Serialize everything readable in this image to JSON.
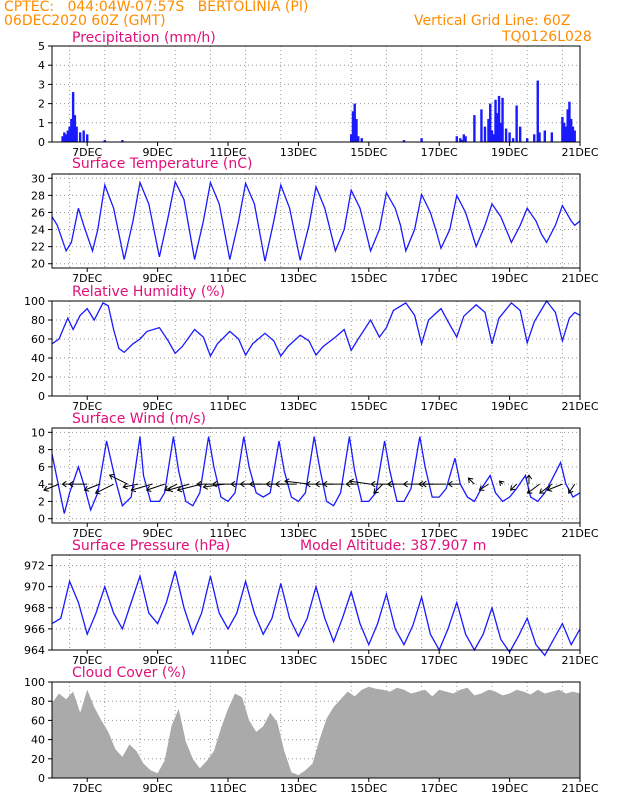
{
  "header": {
    "line1": "CPTEC:   044:04W-07:57S   BERTOLINIA (PI)",
    "line2": "06DEC2020 60Z (GMT)",
    "grid_note": "Vertical Grid Line: 60Z",
    "code": "TQ0126L028"
  },
  "colors": {
    "header": "#ff8c00",
    "panel_title": "#e0107a",
    "blue": "#1a1aff",
    "cloud": "#aaaaaa",
    "arrow": "#000000"
  },
  "x_axis": {
    "start_day": 6.0,
    "end_day": 21.0,
    "ticks": [
      7,
      9,
      11,
      13,
      15,
      17,
      19,
      21
    ],
    "tick_labels": [
      "7DEC",
      "9DEC",
      "11DEC",
      "13DEC",
      "15DEC",
      "17DEC",
      "19DEC",
      "21DEC"
    ],
    "gridlines": [
      6.5,
      7.5,
      8.5,
      9.5,
      10.5,
      11.5,
      12.5,
      13.5,
      14.5,
      15.5,
      16.5,
      17.5,
      18.5,
      19.5,
      20.5
    ]
  },
  "extra_labels": {
    "model_altitude": "Model Altitude: 387.907 m"
  },
  "chart_data": [
    {
      "id": "precip",
      "type": "bar",
      "title": "Precipitation (mm/h)",
      "ylim": [
        0,
        5
      ],
      "yticks": [
        0,
        1,
        2,
        3,
        4,
        5
      ],
      "x": [
        6.3,
        6.35,
        6.4,
        6.45,
        6.5,
        6.55,
        6.6,
        6.65,
        6.7,
        6.8,
        6.9,
        7.0,
        7.5,
        8.0,
        14.5,
        14.55,
        14.6,
        14.65,
        14.7,
        14.8,
        16.0,
        16.5,
        17.5,
        17.6,
        17.65,
        17.7,
        17.75,
        18.0,
        18.2,
        18.3,
        18.4,
        18.45,
        18.5,
        18.55,
        18.6,
        18.65,
        18.7,
        18.75,
        18.8,
        18.9,
        19.0,
        19.1,
        19.2,
        19.3,
        19.5,
        19.7,
        19.8,
        19.85,
        20.0,
        20.2,
        20.5,
        20.55,
        20.6,
        20.65,
        20.7,
        20.75,
        20.8,
        20.85
      ],
      "values": [
        0.3,
        0.5,
        0.4,
        0.6,
        0.8,
        1.2,
        2.6,
        1.4,
        0.8,
        0.5,
        0.6,
        0.4,
        0.1,
        0.1,
        0.4,
        1.6,
        2.0,
        1.2,
        0.3,
        0.2,
        0.1,
        0.2,
        0.3,
        0.2,
        0.1,
        0.4,
        0.3,
        1.4,
        1.7,
        0.8,
        1.2,
        2.0,
        0.6,
        0.4,
        2.2,
        1.5,
        2.4,
        1.0,
        2.3,
        0.7,
        0.5,
        0.2,
        1.9,
        0.8,
        0.2,
        0.4,
        3.2,
        0.5,
        0.6,
        0.5,
        1.3,
        1.0,
        0.8,
        1.7,
        2.1,
        1.2,
        0.8,
        0.6
      ]
    },
    {
      "id": "temp",
      "type": "line",
      "title": "Surface Temperature (nC)",
      "ylim": [
        19.5,
        30.5
      ],
      "yticks": [
        20,
        22,
        24,
        26,
        28,
        30
      ],
      "x": [
        6.0,
        6.15,
        6.4,
        6.55,
        6.75,
        6.9,
        7.15,
        7.3,
        7.5,
        7.75,
        8.05,
        8.3,
        8.5,
        8.75,
        9.05,
        9.3,
        9.5,
        9.75,
        10.05,
        10.3,
        10.5,
        10.75,
        11.05,
        11.3,
        11.5,
        11.75,
        12.05,
        12.3,
        12.5,
        12.75,
        13.05,
        13.3,
        13.5,
        13.75,
        14.05,
        14.3,
        14.5,
        14.75,
        14.9,
        15.05,
        15.3,
        15.5,
        15.75,
        15.9,
        16.05,
        16.3,
        16.5,
        16.75,
        16.9,
        17.05,
        17.3,
        17.5,
        17.75,
        17.9,
        18.05,
        18.3,
        18.5,
        18.75,
        18.9,
        19.05,
        19.3,
        19.5,
        19.75,
        19.9,
        20.05,
        20.3,
        20.5,
        20.75,
        20.85,
        21.0
      ],
      "values": [
        25.5,
        24.5,
        21.5,
        22.5,
        26.5,
        24.5,
        21.5,
        24.0,
        29.2,
        26.5,
        20.5,
        25.0,
        29.5,
        27.0,
        20.8,
        25.5,
        29.6,
        27.5,
        20.5,
        25.0,
        29.5,
        27.0,
        20.5,
        25.0,
        29.4,
        27.0,
        20.3,
        25.0,
        29.2,
        26.5,
        20.4,
        24.5,
        29.0,
        26.5,
        21.5,
        24.0,
        28.6,
        26.5,
        24.0,
        21.5,
        24.0,
        28.3,
        26.5,
        24.5,
        21.5,
        24.0,
        28.1,
        26.0,
        24.0,
        21.8,
        24.0,
        28.0,
        26.0,
        24.0,
        22.0,
        24.5,
        27.0,
        25.5,
        24.0,
        22.5,
        24.5,
        26.5,
        25.0,
        23.5,
        22.5,
        24.5,
        26.8,
        25.0,
        24.5,
        25.0
      ]
    },
    {
      "id": "rh",
      "type": "line",
      "title": "Relative Humidity (%)",
      "ylim": [
        0,
        100
      ],
      "yticks": [
        0,
        20,
        40,
        60,
        80,
        100
      ],
      "x": [
        6.0,
        6.2,
        6.45,
        6.6,
        6.8,
        7.0,
        7.2,
        7.45,
        7.6,
        7.75,
        7.9,
        8.05,
        8.3,
        8.5,
        8.7,
        9.05,
        9.3,
        9.5,
        9.7,
        10.05,
        10.3,
        10.5,
        10.7,
        11.05,
        11.3,
        11.5,
        11.7,
        12.05,
        12.3,
        12.5,
        12.7,
        13.05,
        13.3,
        13.5,
        13.7,
        14.05,
        14.3,
        14.5,
        14.7,
        15.05,
        15.3,
        15.5,
        15.7,
        16.05,
        16.3,
        16.5,
        16.7,
        17.05,
        17.3,
        17.5,
        17.7,
        18.05,
        18.3,
        18.5,
        18.7,
        19.05,
        19.3,
        19.5,
        19.7,
        20.05,
        20.3,
        20.5,
        20.7,
        20.85,
        21.0
      ],
      "values": [
        55,
        60,
        82,
        70,
        85,
        92,
        80,
        98,
        95,
        70,
        50,
        46,
        55,
        60,
        68,
        72,
        58,
        45,
        52,
        70,
        62,
        42,
        55,
        68,
        60,
        43,
        55,
        66,
        58,
        42,
        52,
        64,
        58,
        43,
        52,
        62,
        70,
        48,
        60,
        80,
        62,
        72,
        90,
        98,
        85,
        55,
        80,
        92,
        75,
        62,
        84,
        96,
        88,
        55,
        82,
        98,
        90,
        56,
        78,
        100,
        88,
        58,
        82,
        88,
        85
      ]
    },
    {
      "id": "wind",
      "type": "line",
      "title": "Surface Wind (m/s)",
      "ylim": [
        -0.5,
        10.5
      ],
      "yticks": [
        0,
        2,
        4,
        6,
        8,
        10
      ],
      "x": [
        6.0,
        6.15,
        6.35,
        6.5,
        6.75,
        6.9,
        7.1,
        7.3,
        7.55,
        7.8,
        8.0,
        8.25,
        8.5,
        8.6,
        8.8,
        9.05,
        9.2,
        9.45,
        9.6,
        9.8,
        10.0,
        10.2,
        10.45,
        10.6,
        10.8,
        11.0,
        11.2,
        11.45,
        11.6,
        11.8,
        12.0,
        12.2,
        12.45,
        12.6,
        12.8,
        13.0,
        13.2,
        13.45,
        13.6,
        13.8,
        14.0,
        14.2,
        14.45,
        14.6,
        14.8,
        15.0,
        15.2,
        15.45,
        15.6,
        15.8,
        16.0,
        16.2,
        16.45,
        16.6,
        16.8,
        17.0,
        17.2,
        17.45,
        17.6,
        17.8,
        18.0,
        18.2,
        18.45,
        18.6,
        18.8,
        19.0,
        19.2,
        19.45,
        19.6,
        19.8,
        20.0,
        20.2,
        20.45,
        20.6,
        20.8,
        21.0
      ],
      "values": [
        7.5,
        4.5,
        0.6,
        3.0,
        6.0,
        4.0,
        1.0,
        3.0,
        9.0,
        4.5,
        1.5,
        2.5,
        9.5,
        5.0,
        2.0,
        2.0,
        3.0,
        9.5,
        5.5,
        2.0,
        1.5,
        3.0,
        9.5,
        6.0,
        2.5,
        2.0,
        3.0,
        9.5,
        6.0,
        3.0,
        2.5,
        3.0,
        9.0,
        5.5,
        2.5,
        2.0,
        3.0,
        9.5,
        6.0,
        2.0,
        1.5,
        3.0,
        9.5,
        5.5,
        2.0,
        2.0,
        3.0,
        9.0,
        5.5,
        2.0,
        2.0,
        3.5,
        9.5,
        6.0,
        2.5,
        2.5,
        3.5,
        7.0,
        4.0,
        2.5,
        2.0,
        3.5,
        5.0,
        3.0,
        2.0,
        2.5,
        3.5,
        5.0,
        2.5,
        2.0,
        3.0,
        4.5,
        6.5,
        4.0,
        2.5,
        3.0
      ],
      "arrows_x": [
        6.2,
        6.55,
        7.0,
        7.35,
        7.75,
        8.15,
        8.45,
        8.85,
        9.2,
        9.55,
        9.9,
        10.25,
        10.55,
        10.9,
        11.25,
        11.6,
        11.95,
        12.3,
        12.6,
        12.95,
        13.3,
        13.65,
        14.0,
        14.3,
        14.7,
        15.05,
        15.4,
        15.75,
        16.05,
        16.5,
        16.85,
        17.2,
        17.6,
        18.0,
        18.4,
        18.8,
        19.2,
        19.55,
        19.85,
        20.2,
        20.5,
        20.85
      ],
      "arrows_u": [
        -2.5,
        -1.5,
        -3.0,
        -2.5,
        -3.0,
        -3.0,
        -2.5,
        -3.5,
        -3.0,
        -2.0,
        -3.5,
        -4.0,
        -2.5,
        -3.5,
        -4.0,
        -3.0,
        -3.5,
        -4.0,
        -3.0,
        -3.5,
        -4.0,
        -2.5,
        -3.0,
        -3.5,
        -2.0,
        -3.5,
        -1.5,
        -4.0,
        -3.0,
        -3.0,
        -2.5,
        -4.0,
        -2.0,
        -1.0,
        -1.5,
        -0.5,
        -1.0,
        0.0,
        -2.0,
        -2.0,
        -2.5,
        -1.0
      ],
      "arrows_v": [
        -1.0,
        0.0,
        0.0,
        -1.0,
        -1.5,
        1.5,
        -0.5,
        -1.0,
        -1.0,
        -1.0,
        -1.0,
        -1.0,
        0.0,
        -0.5,
        0.0,
        0.0,
        0.0,
        0.0,
        0.0,
        0.0,
        0.5,
        0.0,
        0.0,
        0.0,
        0.0,
        0.5,
        -1.5,
        0.0,
        0.0,
        0.0,
        0.0,
        0.0,
        0.0,
        1.0,
        -1.0,
        0.5,
        -1.0,
        1.5,
        -1.5,
        -1.5,
        -1.0,
        -1.5
      ]
    },
    {
      "id": "pres",
      "type": "line",
      "title": "Surface Pressure (hPa)",
      "ylim": [
        964,
        973
      ],
      "yticks": [
        964,
        966,
        968,
        970,
        972
      ],
      "x": [
        6.0,
        6.25,
        6.5,
        6.75,
        7.0,
        7.25,
        7.5,
        7.75,
        8.0,
        8.25,
        8.5,
        8.75,
        9.0,
        9.25,
        9.5,
        9.75,
        10.0,
        10.25,
        10.5,
        10.75,
        11.0,
        11.25,
        11.5,
        11.75,
        12.0,
        12.25,
        12.5,
        12.75,
        13.0,
        13.25,
        13.5,
        13.75,
        14.0,
        14.25,
        14.5,
        14.75,
        15.0,
        15.25,
        15.5,
        15.75,
        16.0,
        16.25,
        16.5,
        16.75,
        17.0,
        17.25,
        17.5,
        17.75,
        18.0,
        18.25,
        18.5,
        18.75,
        19.0,
        19.25,
        19.5,
        19.75,
        20.0,
        20.25,
        20.5,
        20.75,
        21.0
      ],
      "values": [
        966.5,
        967.0,
        970.5,
        968.5,
        965.5,
        967.5,
        970.0,
        967.5,
        966.0,
        968.5,
        971.0,
        967.5,
        966.5,
        968.5,
        971.5,
        968.0,
        965.5,
        967.5,
        971.0,
        967.5,
        966.0,
        967.5,
        970.5,
        967.5,
        965.5,
        967.0,
        970.3,
        967.0,
        965.3,
        967.0,
        970.0,
        967.0,
        964.8,
        967.0,
        969.5,
        966.5,
        964.5,
        966.5,
        969.3,
        966.0,
        964.5,
        966.3,
        969.0,
        965.5,
        964.0,
        966.0,
        968.5,
        965.5,
        964.0,
        965.5,
        968.0,
        965.0,
        963.8,
        965.3,
        967.0,
        964.5,
        963.5,
        965.0,
        966.5,
        964.5,
        966.0
      ]
    },
    {
      "id": "cloud",
      "type": "area",
      "title": "Cloud Cover (%)",
      "ylim": [
        0,
        100
      ],
      "yticks": [
        0,
        20,
        40,
        60,
        80,
        100
      ],
      "x": [
        6.0,
        6.2,
        6.4,
        6.6,
        6.8,
        7.0,
        7.2,
        7.4,
        7.6,
        7.8,
        8.0,
        8.2,
        8.4,
        8.6,
        8.8,
        9.0,
        9.2,
        9.4,
        9.6,
        9.8,
        10.0,
        10.2,
        10.4,
        10.6,
        10.8,
        11.0,
        11.2,
        11.4,
        11.6,
        11.8,
        12.0,
        12.2,
        12.4,
        12.6,
        12.8,
        13.0,
        13.2,
        13.4,
        13.6,
        13.8,
        14.0,
        14.2,
        14.4,
        14.6,
        14.8,
        15.0,
        15.2,
        15.4,
        15.6,
        15.8,
        16.0,
        16.2,
        16.4,
        16.6,
        16.8,
        17.0,
        17.2,
        17.4,
        17.6,
        17.8,
        18.0,
        18.2,
        18.4,
        18.6,
        18.8,
        19.0,
        19.2,
        19.4,
        19.6,
        19.8,
        20.0,
        20.2,
        20.4,
        20.6,
        20.8,
        21.0
      ],
      "values": [
        78,
        88,
        82,
        90,
        68,
        92,
        74,
        60,
        48,
        30,
        22,
        35,
        28,
        15,
        8,
        5,
        18,
        55,
        72,
        38,
        20,
        10,
        18,
        28,
        52,
        72,
        88,
        84,
        60,
        48,
        54,
        68,
        58,
        28,
        6,
        3,
        8,
        15,
        40,
        62,
        74,
        82,
        90,
        85,
        92,
        95,
        93,
        92,
        90,
        94,
        92,
        88,
        90,
        92,
        85,
        92,
        90,
        88,
        92,
        94,
        86,
        88,
        92,
        90,
        86,
        88,
        92,
        90,
        87,
        92,
        88,
        90,
        92,
        88,
        90,
        88
      ]
    }
  ]
}
